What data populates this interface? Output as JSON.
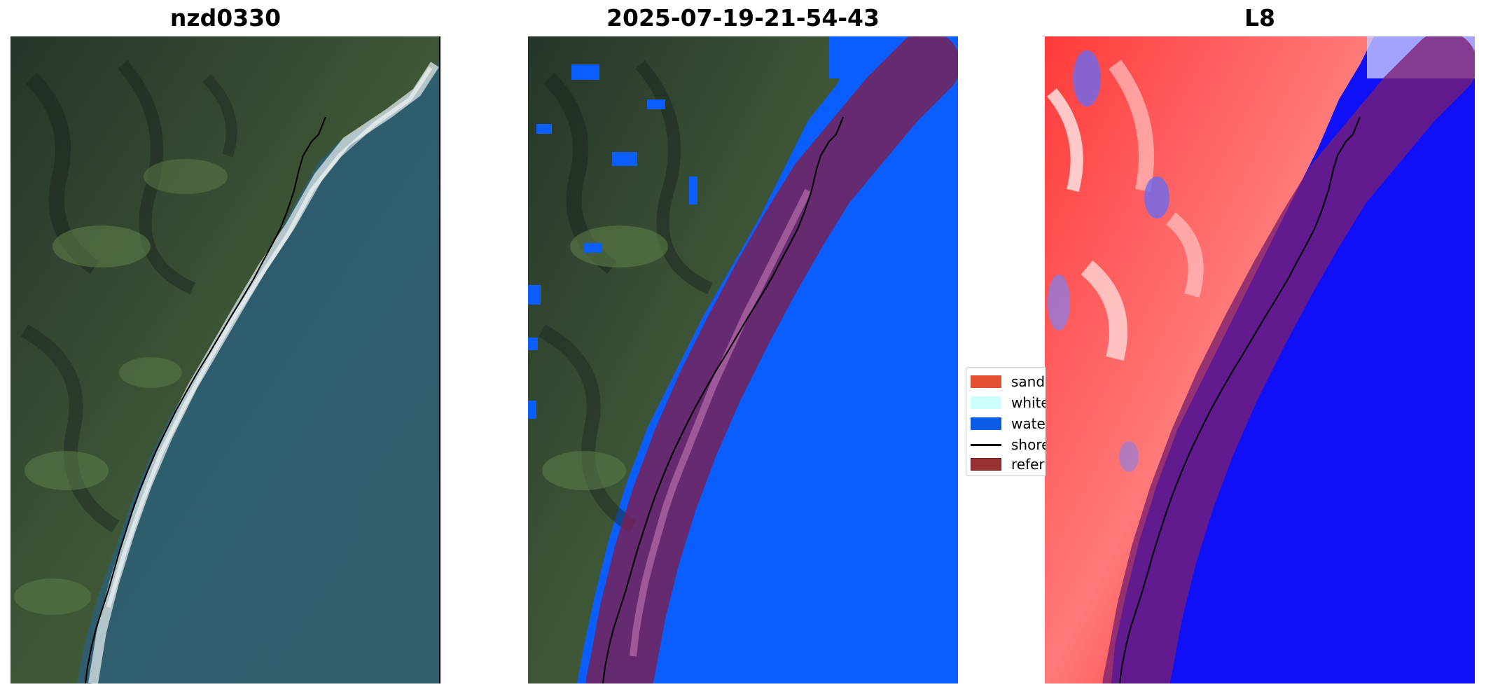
{
  "panels": [
    {
      "title": "nzd0330"
    },
    {
      "title": "2025-07-19-21-54-43"
    },
    {
      "title": "L8"
    }
  ],
  "legend": {
    "placement": "center-right of middle panel",
    "items": [
      {
        "label": "sand",
        "color": "#e2512f",
        "kind": "patch"
      },
      {
        "label": "white",
        "color": "#ccffff",
        "kind": "patch"
      },
      {
        "label": "water",
        "color": "#0a5be6",
        "kind": "patch"
      },
      {
        "label": "shore",
        "color": "#000000",
        "kind": "line"
      },
      {
        "label": "refer",
        "color": "#993333",
        "kind": "patch"
      }
    ]
  },
  "colors": {
    "land_dark": "#2a3a2c",
    "land_green": "#4f6e3f",
    "sea": "#2f5c6d",
    "surf": "#dfe8ea",
    "classified_water": "#0a5eff",
    "reference_buffer": "#7a1f4f",
    "index_high": "#ff0000",
    "index_low": "#0000ff"
  }
}
